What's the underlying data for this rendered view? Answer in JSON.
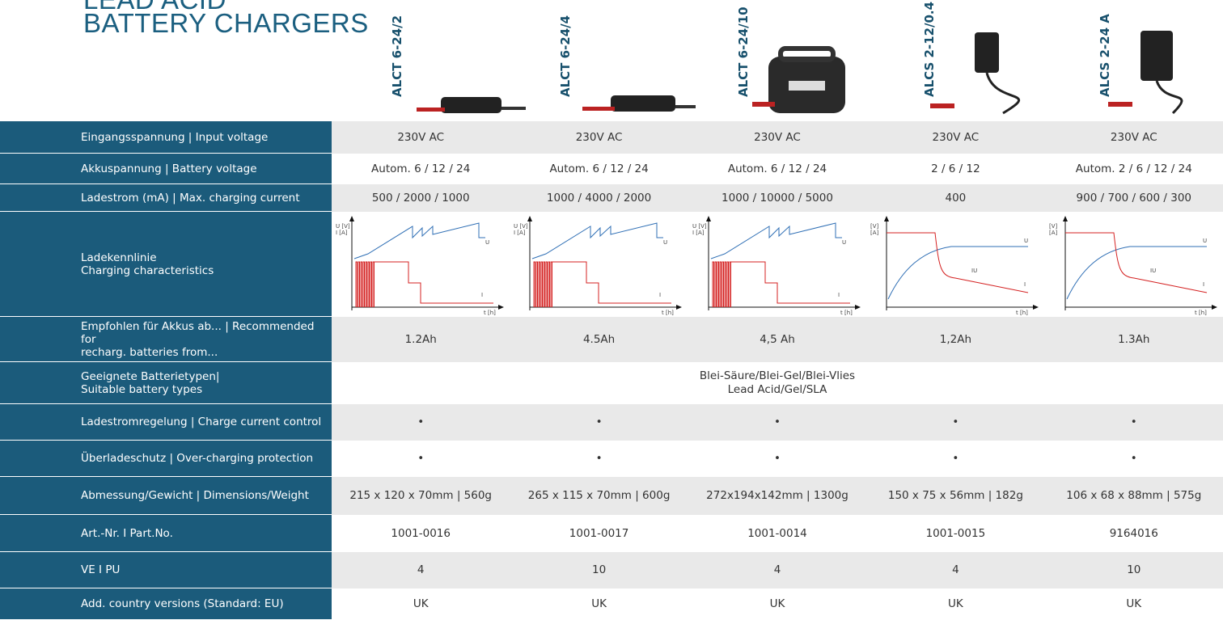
{
  "header": {
    "title_line_1": "LEAD ACID",
    "title_line_2": "BATTERY CHARGERS"
  },
  "products": [
    "ALCT 6-24/2",
    "ALCT 6-24/4",
    "ALCT 6-24/10",
    "ALCS 2-12/0.4",
    "ALCS 2-24 A"
  ],
  "table": {
    "rows": [
      {
        "label": "Eingangsspannung | Input voltage",
        "cells": [
          "230V AC",
          "230V AC",
          "230V AC",
          "230V AC",
          "230V AC"
        ]
      },
      {
        "label": "Akkuspannung | Battery voltage",
        "cells": [
          "Autom. 6 / 12 / 24",
          "Autom. 6 / 12 / 24",
          "Autom. 6 / 12 / 24",
          "2 / 6 / 12",
          "Autom. 2 / 6 / 12 / 24"
        ]
      },
      {
        "label": "Ladestrom (mA) | Max. charging current",
        "cells": [
          "500 / 2000 / 1000",
          "1000 / 4000 / 2000",
          "1000 / 10000 / 5000",
          "400",
          "900 / 700 / 600 / 300"
        ]
      },
      {
        "label": "Ladekennlinie\nCharging characteristics",
        "charts": [
          {
            "curve": "pulse",
            "labels": [
              "U [V]",
              "I [A]",
              "U",
              "I",
              "t [h]"
            ]
          },
          {
            "curve": "pulse",
            "labels": [
              "U [V]",
              "I [A]",
              "U",
              "I",
              "t [h]"
            ]
          },
          {
            "curve": "pulse",
            "labels": [
              "U [V]",
              "I [A]",
              "U",
              "I",
              "t [h]"
            ]
          },
          {
            "curve": "iu",
            "labels": [
              "[V]",
              "[A]",
              "U",
              "I",
              "t [h]",
              "IU"
            ]
          },
          {
            "curve": "iu",
            "labels": [
              "[V]",
              "[A]",
              "U",
              "I",
              "t [h]",
              "IU"
            ]
          }
        ]
      },
      {
        "label": "Empfohlen für Akkus ab... | Recommended for\nrecharg. batteries from...",
        "cells": [
          "1.2Ah",
          "4.5Ah",
          "4,5 Ah",
          "1,2Ah",
          "1.3Ah"
        ]
      },
      {
        "label": "Geeignete Batterietypen|\nSuitable battery types",
        "span": "Blei-Säure/Blei-Gel/Blei-Vlies\nLead Acid/Gel/SLA"
      },
      {
        "label": "Ladestromregelung | Charge current control",
        "cells": [
          "•",
          "•",
          "•",
          "•",
          "•"
        ]
      },
      {
        "label": "Überladeschutz | Over-charging protection",
        "cells": [
          "•",
          "•",
          "•",
          "•",
          "•"
        ]
      },
      {
        "label": "Abmessung/Gewicht | Dimensions/Weight",
        "cells": [
          "215 x 120 x 70mm | 560g",
          "265 x 115 x 70mm | 600g",
          "272x194x142mm | 1300g",
          "150 x 75 x 56mm | 182g",
          "106 x 68 x 88mm | 575g"
        ]
      },
      {
        "label": "Art.-Nr.  I  Part.No.",
        "cells": [
          "1001-0016",
          "1001-0017",
          "1001-0014",
          "1001-0015",
          "9164016"
        ]
      },
      {
        "label": "VE  I  PU",
        "cells": [
          "4",
          "10",
          "4",
          "4",
          "10"
        ]
      },
      {
        "label": "Add. country versions (Standard: EU)",
        "cells": [
          "UK",
          "UK",
          "UK",
          "UK",
          "UK"
        ]
      }
    ]
  }
}
